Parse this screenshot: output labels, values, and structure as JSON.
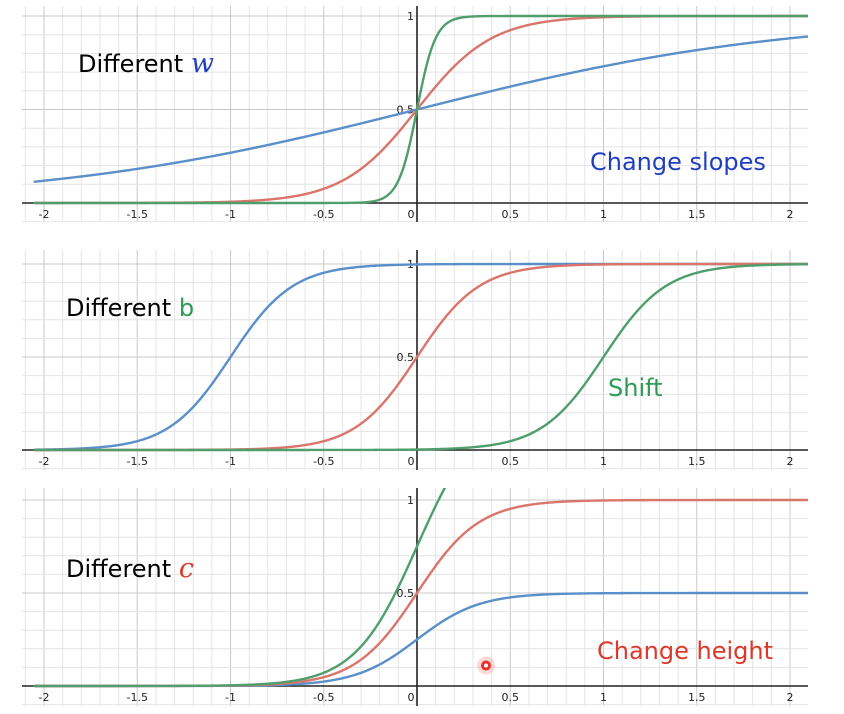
{
  "colors": {
    "blue": "#5b8fc9",
    "red": "#d9756a",
    "green": "#4f9e6c",
    "label_blue": "#1f3fbf",
    "label_green": "#2e9a55",
    "label_red": "#d93a2a",
    "grid_major": "#c8c8c8",
    "grid_minor": "#e4e4e4",
    "axis": "#222222",
    "cursor": "#e8322a"
  },
  "chart_data": [
    {
      "type": "line",
      "function": "c * sigmoid(w*x + b)",
      "xlim": [
        -2.05,
        2.1
      ],
      "ylim": [
        -0.02,
        1.02
      ],
      "x_ticks": [
        "-2",
        "-1.5",
        "-1",
        "-0.5",
        "0",
        "0.5",
        "1",
        "1.5",
        "2"
      ],
      "y_ticks": [
        "0.5",
        "1"
      ],
      "annotations": [
        {
          "text": "Different ",
          "var": "w",
          "var_color": "label_blue",
          "text_color": "#000000"
        },
        {
          "text": "Change slopes",
          "color": "label_blue"
        }
      ],
      "series": [
        {
          "color": "blue",
          "params": {
            "w": 1,
            "b": 0,
            "c": 1
          }
        },
        {
          "color": "red",
          "params": {
            "w": 5,
            "b": 0,
            "c": 1
          }
        },
        {
          "color": "green",
          "params": {
            "w": 20,
            "b": 0,
            "c": 1
          }
        }
      ]
    },
    {
      "type": "line",
      "function": "c * sigmoid(w*x + b)",
      "xlim": [
        -2.05,
        2.1
      ],
      "ylim": [
        -0.02,
        1.02
      ],
      "x_ticks": [
        "-2",
        "-1.5",
        "-1",
        "-0.5",
        "0",
        "0.5",
        "1",
        "1.5",
        "2"
      ],
      "y_ticks": [
        "0.5",
        "1"
      ],
      "annotations": [
        {
          "text": "Different ",
          "var": "b",
          "var_color": "label_green",
          "text_color": "#000000"
        },
        {
          "text": "Shift",
          "color": "label_green"
        }
      ],
      "series": [
        {
          "color": "blue",
          "params": {
            "w": 6,
            "b": 6,
            "c": 1
          }
        },
        {
          "color": "red",
          "params": {
            "w": 6,
            "b": 0,
            "c": 1
          }
        },
        {
          "color": "green",
          "params": {
            "w": 6,
            "b": -6,
            "c": 1
          }
        }
      ]
    },
    {
      "type": "line",
      "function": "c * sigmoid(w*x + b)",
      "xlim": [
        -2.05,
        2.1
      ],
      "ylim": [
        -0.02,
        1.02
      ],
      "x_ticks": [
        "-2",
        "-1.5",
        "-1",
        "-0.5",
        "0",
        "0.5",
        "1",
        "1.5",
        "2"
      ],
      "y_ticks": [
        "0.5",
        "1"
      ],
      "annotations": [
        {
          "text": "Different ",
          "var": "c",
          "var_color": "label_red",
          "text_color": "#000000"
        },
        {
          "text": "Change height",
          "color": "label_red"
        }
      ],
      "series": [
        {
          "color": "blue",
          "params": {
            "w": 6,
            "b": 0,
            "c": 0.5
          }
        },
        {
          "color": "red",
          "params": {
            "w": 6,
            "b": 0,
            "c": 1
          }
        },
        {
          "color": "green",
          "params": {
            "w": 6,
            "b": 0,
            "c": 1.5
          }
        }
      ]
    }
  ],
  "cursor": {
    "data_x": 0.37,
    "data_y": 0.11,
    "panel": 2
  }
}
